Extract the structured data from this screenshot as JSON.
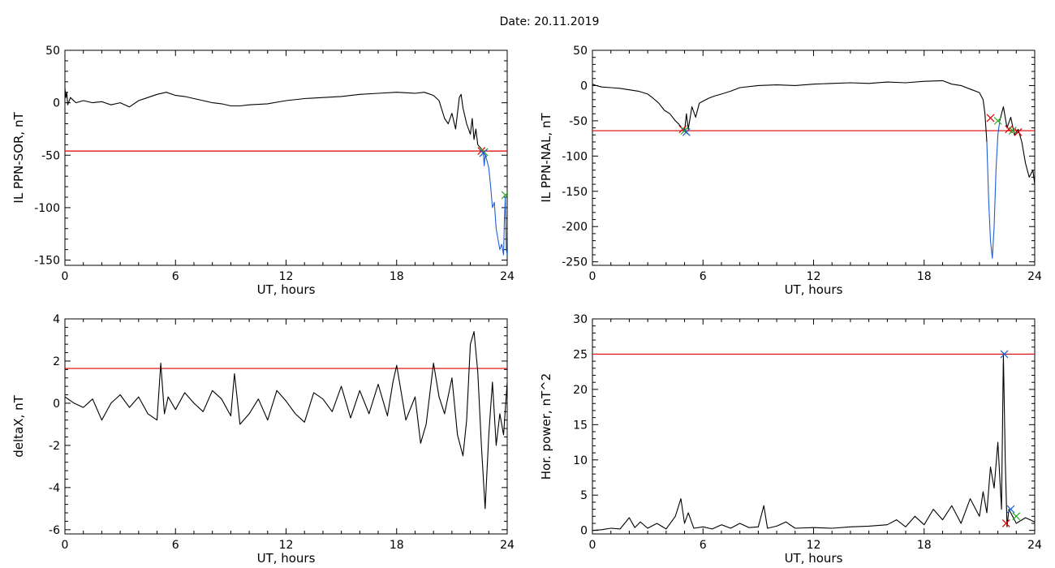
{
  "page": {
    "title": "Date:  20.11.2019"
  },
  "chart_data": [
    {
      "type": "line",
      "id": "sor",
      "xlabel": "UT, hours",
      "ylabel": "IL PPN-SOR, nT",
      "xlim": [
        0,
        24
      ],
      "ylim": [
        -155,
        50
      ],
      "xticks": [
        0,
        6,
        12,
        18,
        24
      ],
      "yticks": [
        -150,
        -100,
        -50,
        0,
        50
      ],
      "grid": false,
      "threshold": {
        "y": -46,
        "color": "#dd0000"
      },
      "series": [
        {
          "color": "#000000",
          "x": [
            0.0,
            0.05,
            0.1,
            0.15,
            0.3,
            0.6,
            1.0,
            1.5,
            2.0,
            2.5,
            3.0,
            3.5,
            4.0,
            4.5,
            5.0,
            5.5,
            6.0,
            6.5,
            7.0,
            7.5,
            8.0,
            8.5,
            9.0,
            9.5,
            10.0,
            11.0,
            12.0,
            13.0,
            14.0,
            15.0,
            16.0,
            17.0,
            18.0,
            19.0,
            19.5,
            20.0,
            20.3,
            20.6,
            20.8,
            21.0,
            21.2,
            21.4,
            21.5,
            21.6,
            21.8,
            22.0,
            22.1,
            22.2,
            22.3,
            22.4,
            22.5,
            22.6,
            22.7
          ],
          "y": [
            14,
            5,
            10,
            -2,
            5,
            0,
            2,
            0,
            1,
            -2,
            0,
            -4,
            2,
            5,
            8,
            10,
            7,
            6,
            4,
            2,
            0,
            -1,
            -3,
            -3,
            -2,
            -1,
            2,
            4,
            5,
            6,
            8,
            9,
            10,
            9,
            10,
            7,
            2,
            -15,
            -20,
            -10,
            -25,
            5,
            8,
            -5,
            -20,
            -30,
            -15,
            -35,
            -25,
            -40,
            -42,
            -44,
            -46
          ]
        },
        {
          "color": "#1f5fd0",
          "x": [
            22.7,
            22.75,
            22.8,
            22.9,
            23.0,
            23.1,
            23.2,
            23.3,
            23.4,
            23.5,
            23.6,
            23.7,
            23.8,
            23.85,
            23.9,
            23.95,
            24.0
          ],
          "y": [
            -46,
            -60,
            -50,
            -55,
            -62,
            -80,
            -100,
            -95,
            -120,
            -130,
            -140,
            -135,
            -145,
            -110,
            -90,
            -140,
            -145
          ]
        }
      ],
      "markers": [
        {
          "x": 22.6,
          "y": -46,
          "color": "#dd0000"
        },
        {
          "x": 22.75,
          "y": -47,
          "color": "#22aa22"
        },
        {
          "x": 22.7,
          "y": -48,
          "color": "#1f5fd0"
        },
        {
          "x": 23.9,
          "y": -88,
          "color": "#22aa22"
        }
      ]
    },
    {
      "type": "line",
      "id": "nal",
      "xlabel": "UT, hours",
      "ylabel": "IL PPN-NAL, nT",
      "xlim": [
        0,
        24
      ],
      "ylim": [
        -255,
        50
      ],
      "xticks": [
        0,
        6,
        12,
        18,
        24
      ],
      "yticks": [
        -250,
        -200,
        -150,
        -100,
        -50,
        0,
        50
      ],
      "grid": false,
      "threshold": {
        "y": -64,
        "color": "#dd0000"
      },
      "series": [
        {
          "color": "#000000",
          "x": [
            0.0,
            0.2,
            0.5,
            1.0,
            1.5,
            2.0,
            2.5,
            3.0,
            3.3,
            3.6,
            3.9,
            4.2,
            4.5,
            4.7,
            4.85,
            5.0,
            5.1,
            5.2,
            5.4,
            5.6,
            5.8,
            6.0,
            6.3,
            6.6,
            7.0,
            7.5,
            8.0,
            9.0,
            10.0,
            11.0,
            12.0,
            13.0,
            14.0,
            15.0,
            16.0,
            17.0,
            18.0,
            19.0,
            19.5,
            20.0,
            20.5,
            21.0,
            21.2,
            21.3,
            21.4
          ],
          "y": [
            2,
            0,
            -2,
            -3,
            -4,
            -6,
            -8,
            -12,
            -18,
            -25,
            -35,
            -40,
            -50,
            -55,
            -60,
            -65,
            -40,
            -62,
            -30,
            -45,
            -25,
            -22,
            -18,
            -15,
            -12,
            -8,
            -3,
            0,
            1,
            0,
            2,
            3,
            4,
            3,
            5,
            4,
            6,
            7,
            2,
            0,
            -5,
            -10,
            -20,
            -40,
            -80
          ]
        },
        {
          "color": "#1f5fd0",
          "x": [
            21.4,
            21.5,
            21.6,
            21.7,
            21.8,
            21.9,
            22.0,
            22.1
          ],
          "y": [
            -80,
            -160,
            -220,
            -245,
            -200,
            -120,
            -70,
            -50
          ]
        },
        {
          "color": "#000000",
          "x": [
            22.1,
            22.3,
            22.5,
            22.7,
            22.9,
            23.1,
            23.3,
            23.5,
            23.7,
            23.9,
            24.0
          ],
          "y": [
            -50,
            -30,
            -60,
            -45,
            -70,
            -62,
            -80,
            -110,
            -130,
            -120,
            -140
          ]
        }
      ],
      "markers": [
        {
          "x": 4.9,
          "y": -62,
          "color": "#dd0000"
        },
        {
          "x": 5.0,
          "y": -64,
          "color": "#22aa22"
        },
        {
          "x": 5.1,
          "y": -66,
          "color": "#1f5fd0"
        },
        {
          "x": 21.6,
          "y": -46,
          "color": "#dd0000"
        },
        {
          "x": 22.0,
          "y": -50,
          "color": "#22aa22"
        },
        {
          "x": 22.6,
          "y": -62,
          "color": "#dd0000"
        },
        {
          "x": 22.8,
          "y": -64,
          "color": "#22aa22"
        },
        {
          "x": 23.1,
          "y": -66,
          "color": "#dd0000"
        }
      ]
    },
    {
      "type": "line",
      "id": "deltax",
      "xlabel": "UT, hours",
      "ylabel": "deltaX, nT",
      "xlim": [
        0,
        24
      ],
      "ylim": [
        -6.2,
        4
      ],
      "xticks": [
        0,
        6,
        12,
        18,
        24
      ],
      "yticks": [
        -6,
        -4,
        -2,
        0,
        2,
        4
      ],
      "grid": false,
      "threshold": {
        "y": 1.65,
        "color": "#dd0000"
      },
      "series": [
        {
          "color": "#000000",
          "x": [
            0.0,
            0.5,
            1.0,
            1.5,
            2.0,
            2.5,
            3.0,
            3.5,
            4.0,
            4.5,
            5.0,
            5.2,
            5.4,
            5.6,
            6.0,
            6.5,
            7.0,
            7.5,
            8.0,
            8.5,
            9.0,
            9.2,
            9.5,
            10.0,
            10.5,
            11.0,
            11.5,
            12.0,
            12.5,
            13.0,
            13.5,
            14.0,
            14.5,
            15.0,
            15.5,
            16.0,
            16.5,
            17.0,
            17.5,
            17.8,
            18.0,
            18.5,
            19.0,
            19.3,
            19.6,
            20.0,
            20.3,
            20.6,
            21.0,
            21.3,
            21.6,
            21.8,
            22.0,
            22.2,
            22.4,
            22.6,
            22.8,
            23.0,
            23.2,
            23.4,
            23.6,
            23.8,
            24.0
          ],
          "y": [
            0.3,
            0.0,
            -0.2,
            0.2,
            -0.8,
            0.0,
            0.4,
            -0.2,
            0.3,
            -0.5,
            -0.8,
            1.9,
            -0.5,
            0.3,
            -0.3,
            0.5,
            0.0,
            -0.4,
            0.6,
            0.2,
            -0.6,
            1.4,
            -1.0,
            -0.5,
            0.2,
            -0.8,
            0.6,
            0.1,
            -0.5,
            -0.9,
            0.5,
            0.2,
            -0.4,
            0.8,
            -0.7,
            0.6,
            -0.5,
            0.9,
            -0.6,
            1.0,
            1.8,
            -0.8,
            0.3,
            -1.9,
            -1.0,
            1.9,
            0.3,
            -0.5,
            1.2,
            -1.5,
            -2.5,
            -0.8,
            2.8,
            3.4,
            1.5,
            -2.0,
            -5.0,
            -1.5,
            1.0,
            -2.0,
            -0.5,
            -1.5,
            1.0
          ]
        }
      ],
      "markers": []
    },
    {
      "type": "line",
      "id": "horpower",
      "xlabel": "UT, hours",
      "ylabel": "Hor. power, nT^2",
      "xlim": [
        0,
        24
      ],
      "ylim": [
        -0.5,
        30
      ],
      "xticks": [
        0,
        6,
        12,
        18,
        24
      ],
      "yticks": [
        0,
        5,
        10,
        15,
        20,
        25,
        30
      ],
      "grid": false,
      "threshold": {
        "y": 25,
        "color": "#dd0000"
      },
      "series": [
        {
          "color": "#000000",
          "x": [
            0.0,
            0.5,
            1.0,
            1.5,
            2.0,
            2.3,
            2.6,
            3.0,
            3.5,
            4.0,
            4.5,
            4.8,
            5.0,
            5.2,
            5.5,
            6.0,
            6.5,
            7.0,
            7.5,
            8.0,
            8.5,
            9.0,
            9.3,
            9.5,
            10.0,
            10.5,
            11.0,
            12.0,
            13.0,
            14.0,
            15.0,
            16.0,
            16.5,
            17.0,
            17.5,
            18.0,
            18.5,
            19.0,
            19.5,
            20.0,
            20.5,
            21.0,
            21.2,
            21.4,
            21.6,
            21.8,
            22.0,
            22.2,
            22.3,
            22.4,
            22.5,
            22.6,
            22.8,
            23.0,
            23.5,
            24.0
          ],
          "y": [
            0.0,
            0.1,
            0.3,
            0.2,
            1.8,
            0.4,
            1.2,
            0.3,
            1.0,
            0.2,
            2.0,
            4.5,
            1.0,
            2.5,
            0.3,
            0.5,
            0.2,
            0.8,
            0.3,
            1.0,
            0.4,
            0.5,
            3.5,
            0.3,
            0.6,
            1.2,
            0.3,
            0.4,
            0.3,
            0.5,
            0.6,
            0.8,
            1.5,
            0.5,
            2.0,
            0.8,
            3.0,
            1.5,
            3.5,
            1.0,
            4.5,
            2.0,
            5.5,
            2.5,
            9.0,
            6.0,
            12.5,
            3.0,
            25.0,
            10.0,
            0.5,
            3.0,
            2.0,
            1.0,
            1.8,
            1.2
          ]
        }
      ],
      "markers": [
        {
          "x": 22.35,
          "y": 25,
          "color": "#1f5fd0"
        },
        {
          "x": 22.45,
          "y": 1.0,
          "color": "#dd0000"
        },
        {
          "x": 22.7,
          "y": 3.0,
          "color": "#1f5fd0"
        },
        {
          "x": 23.0,
          "y": 2.0,
          "color": "#22aa22"
        }
      ]
    }
  ]
}
